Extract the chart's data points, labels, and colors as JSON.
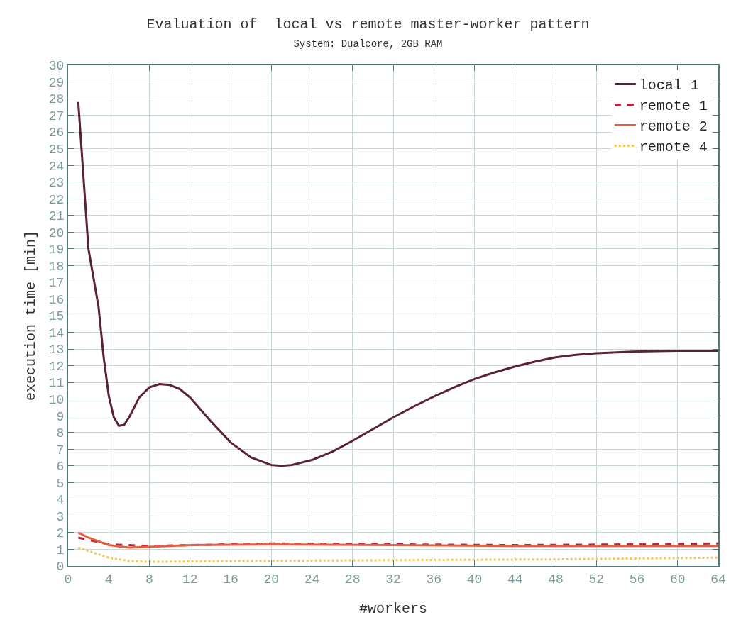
{
  "chart_data": {
    "type": "line",
    "title": "Evaluation of  local vs remote master-worker pattern",
    "subtitle": "System: Dualcore, 2GB RAM",
    "xlabel": "#workers",
    "ylabel": "execution time [min]",
    "xlim": [
      0,
      64
    ],
    "xticks": [
      0,
      4,
      8,
      12,
      16,
      20,
      24,
      28,
      32,
      36,
      40,
      44,
      48,
      52,
      56,
      60,
      64
    ],
    "ylim": [
      0,
      30
    ],
    "yticks": [
      0,
      1,
      2,
      3,
      4,
      5,
      6,
      7,
      8,
      9,
      10,
      11,
      12,
      13,
      14,
      15,
      16,
      17,
      18,
      19,
      20,
      21,
      22,
      23,
      24,
      25,
      26,
      27,
      28,
      29,
      30
    ],
    "grid": true,
    "legend": "top right",
    "marker": "none",
    "series": [
      {
        "name": "local 1",
        "color": "#5a2235",
        "line_style": "solid",
        "x": [
          1,
          2,
          3,
          3.5,
          4,
          4.5,
          5,
          5.5,
          6,
          7,
          8,
          9,
          10,
          11,
          12,
          14,
          16,
          18,
          20,
          21,
          22,
          24,
          26,
          28,
          30,
          32,
          34,
          36,
          38,
          40,
          42,
          44,
          46,
          48,
          50,
          52,
          56,
          60,
          64
        ],
        "values": [
          27.8,
          19,
          15.5,
          12.5,
          10.2,
          8.9,
          8.4,
          8.45,
          8.9,
          10.1,
          10.7,
          10.9,
          10.85,
          10.6,
          10.1,
          8.7,
          7.4,
          6.5,
          6.05,
          6,
          6.05,
          6.35,
          6.85,
          7.5,
          8.2,
          8.9,
          9.55,
          10.15,
          10.7,
          11.2,
          11.6,
          11.95,
          12.25,
          12.5,
          12.65,
          12.75,
          12.85,
          12.9,
          12.9
        ]
      },
      {
        "name": "remote 1",
        "color": "#c0203a",
        "line_style": "dashed",
        "x": [
          1,
          4,
          8,
          12,
          20,
          32,
          44,
          56,
          64
        ],
        "values": [
          1.7,
          1.3,
          1.2,
          1.25,
          1.35,
          1.3,
          1.25,
          1.3,
          1.35
        ]
      },
      {
        "name": "remote 2",
        "color": "#e06040",
        "line_style": "solid",
        "x": [
          1,
          2,
          4,
          6,
          8,
          12,
          20,
          32,
          44,
          56,
          64
        ],
        "values": [
          2,
          1.7,
          1.25,
          1.1,
          1.15,
          1.25,
          1.3,
          1.25,
          1.2,
          1.2,
          1.2
        ]
      },
      {
        "name": "remote 4",
        "color": "#f0c860",
        "line_style": "dotted",
        "x": [
          1,
          4,
          6,
          8,
          16,
          32,
          48,
          64
        ],
        "values": [
          1.1,
          0.5,
          0.3,
          0.25,
          0.3,
          0.35,
          0.4,
          0.5
        ]
      }
    ]
  }
}
